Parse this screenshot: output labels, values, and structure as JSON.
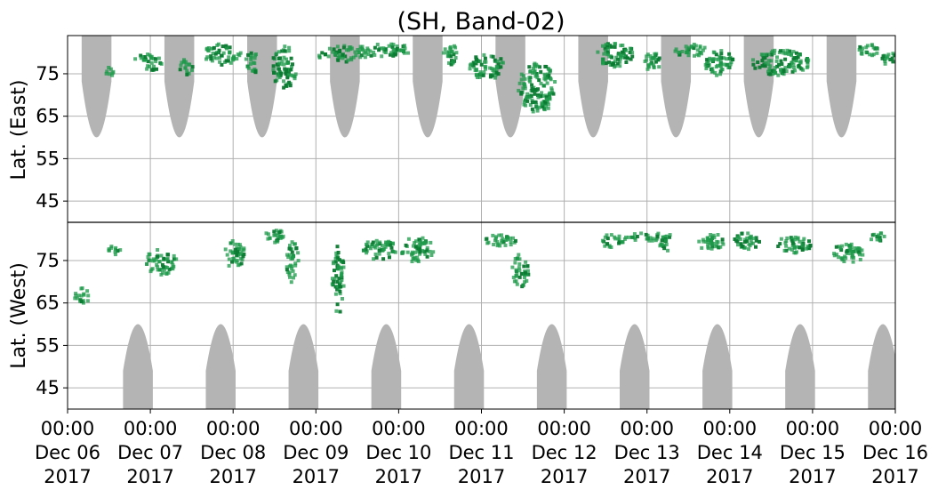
{
  "chart_data": {
    "type": "heatmap",
    "title": "(SH, Band-02)",
    "xlabel": "",
    "ylabel_top": "Lat. (East)",
    "ylabel_bottom": "Lat. (West)",
    "x_ticks": [
      {
        "time": "00:00",
        "date": "Dec 06",
        "year": "2017"
      },
      {
        "time": "00:00",
        "date": "Dec 07",
        "year": "2017"
      },
      {
        "time": "00:00",
        "date": "Dec 08",
        "year": "2017"
      },
      {
        "time": "00:00",
        "date": "Dec 09",
        "year": "2017"
      },
      {
        "time": "00:00",
        "date": "Dec 10",
        "year": "2017"
      },
      {
        "time": "00:00",
        "date": "Dec 11",
        "year": "2017"
      },
      {
        "time": "00:00",
        "date": "Dec 12",
        "year": "2017"
      },
      {
        "time": "00:00",
        "date": "Dec 13",
        "year": "2017"
      },
      {
        "time": "00:00",
        "date": "Dec 14",
        "year": "2017"
      },
      {
        "time": "00:00",
        "date": "Dec 15",
        "year": "2017"
      },
      {
        "time": "00:00",
        "date": "Dec 16",
        "year": "2017"
      }
    ],
    "xlim": [
      "2017-12-06 00:00",
      "2017-12-16 00:00"
    ],
    "y_ticks_east": [
      "45",
      "55",
      "65",
      "75"
    ],
    "y_ticks_west": [
      "75",
      "65",
      "55",
      "45"
    ],
    "ylim_east": [
      40,
      84
    ],
    "ylim_west": [
      84,
      40
    ],
    "grid": true,
    "colors": {
      "activity": "#1e9a4a",
      "activity_dark": "#0b7a32",
      "no_data": "#b4b4b4"
    },
    "no_data_east_centers_days": [
      0.35,
      1.35,
      2.35,
      3.35,
      4.35,
      5.35,
      6.35,
      7.35,
      8.35,
      9.35
    ],
    "no_data_east_edge_lat": 60,
    "no_data_west_centers_days": [
      0.85,
      1.85,
      2.85,
      3.85,
      4.85,
      5.85,
      6.85,
      7.85,
      8.85,
      9.85
    ],
    "no_data_west_edge_lat": 60,
    "no_data_half_width_days": 0.18,
    "activity_east": [
      {
        "day": 0.5,
        "lat": 76,
        "w": 0.12,
        "h": 3,
        "d": 0.3
      },
      {
        "day": 0.95,
        "lat": 78,
        "w": 0.35,
        "h": 4,
        "d": 0.4
      },
      {
        "day": 1.4,
        "lat": 77,
        "w": 0.2,
        "h": 4,
        "d": 0.6
      },
      {
        "day": 1.85,
        "lat": 80,
        "w": 0.45,
        "h": 5,
        "d": 0.5
      },
      {
        "day": 2.2,
        "lat": 78,
        "w": 0.15,
        "h": 6,
        "d": 0.3
      },
      {
        "day": 2.6,
        "lat": 77,
        "w": 0.3,
        "h": 10,
        "d": 0.9
      },
      {
        "day": 3.3,
        "lat": 80,
        "w": 0.6,
        "h": 4,
        "d": 0.5
      },
      {
        "day": 3.8,
        "lat": 81,
        "w": 0.7,
        "h": 3,
        "d": 0.5
      },
      {
        "day": 4.6,
        "lat": 80,
        "w": 0.2,
        "h": 5,
        "d": 0.4
      },
      {
        "day": 5.05,
        "lat": 77,
        "w": 0.45,
        "h": 6,
        "d": 0.6
      },
      {
        "day": 5.65,
        "lat": 72,
        "w": 0.45,
        "h": 12,
        "d": 0.7
      },
      {
        "day": 6.6,
        "lat": 80,
        "w": 0.45,
        "h": 6,
        "d": 0.6
      },
      {
        "day": 7.05,
        "lat": 78,
        "w": 0.2,
        "h": 5,
        "d": 0.4
      },
      {
        "day": 7.5,
        "lat": 81,
        "w": 0.4,
        "h": 3,
        "d": 0.4
      },
      {
        "day": 7.85,
        "lat": 78,
        "w": 0.35,
        "h": 6,
        "d": 0.6
      },
      {
        "day": 8.6,
        "lat": 78,
        "w": 0.7,
        "h": 6,
        "d": 0.8
      },
      {
        "day": 9.65,
        "lat": 81,
        "w": 0.25,
        "h": 3,
        "d": 0.5
      },
      {
        "day": 9.9,
        "lat": 79,
        "w": 0.2,
        "h": 3,
        "d": 0.4
      }
    ],
    "activity_west": [
      {
        "day": 0.15,
        "lat": 67,
        "w": 0.18,
        "h": 4,
        "d": 0.3
      },
      {
        "day": 0.55,
        "lat": 78,
        "w": 0.15,
        "h": 3,
        "d": 0.3
      },
      {
        "day": 1.1,
        "lat": 75,
        "w": 0.4,
        "h": 6,
        "d": 0.4
      },
      {
        "day": 2.0,
        "lat": 77,
        "w": 0.25,
        "h": 7,
        "d": 0.4
      },
      {
        "day": 2.7,
        "lat": 75,
        "w": 0.15,
        "h": 10,
        "d": 0.5
      },
      {
        "day": 2.5,
        "lat": 81,
        "w": 0.3,
        "h": 3,
        "d": 0.5
      },
      {
        "day": 3.25,
        "lat": 71,
        "w": 0.15,
        "h": 16,
        "d": 0.9
      },
      {
        "day": 3.75,
        "lat": 78,
        "w": 0.4,
        "h": 5,
        "d": 0.6
      },
      {
        "day": 4.2,
        "lat": 78,
        "w": 0.4,
        "h": 6,
        "d": 0.6
      },
      {
        "day": 5.2,
        "lat": 80,
        "w": 0.4,
        "h": 3,
        "d": 0.4
      },
      {
        "day": 5.45,
        "lat": 73,
        "w": 0.2,
        "h": 8,
        "d": 0.4
      },
      {
        "day": 6.55,
        "lat": 80,
        "w": 0.35,
        "h": 3,
        "d": 0.5
      },
      {
        "day": 7.0,
        "lat": 81,
        "w": 0.6,
        "h": 2,
        "d": 0.4
      },
      {
        "day": 7.2,
        "lat": 79,
        "w": 0.15,
        "h": 3,
        "d": 0.4
      },
      {
        "day": 7.75,
        "lat": 80,
        "w": 0.4,
        "h": 4,
        "d": 0.5
      },
      {
        "day": 8.2,
        "lat": 80,
        "w": 0.35,
        "h": 4,
        "d": 0.6
      },
      {
        "day": 8.75,
        "lat": 79,
        "w": 0.45,
        "h": 4,
        "d": 0.7
      },
      {
        "day": 9.4,
        "lat": 77,
        "w": 0.4,
        "h": 5,
        "d": 0.4
      },
      {
        "day": 9.75,
        "lat": 81,
        "w": 0.25,
        "h": 2,
        "d": 0.4
      }
    ]
  }
}
